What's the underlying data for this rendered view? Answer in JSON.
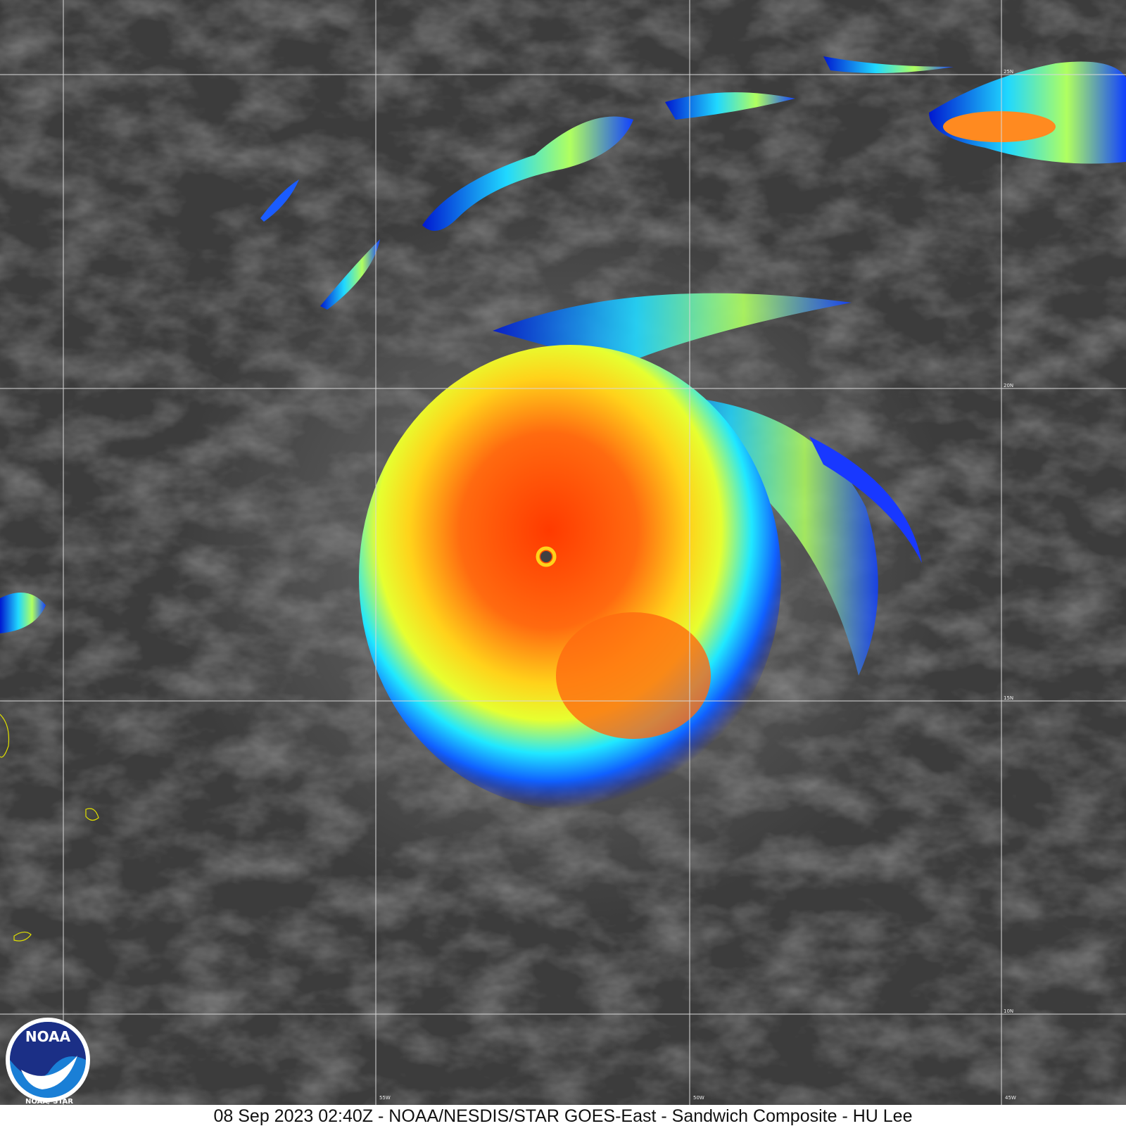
{
  "map": {
    "lat_labels": [
      "25N",
      "20N",
      "15N",
      "10N"
    ],
    "lon_labels": [
      "55W",
      "50W",
      "45W"
    ]
  },
  "caption": "08 Sep 2023 02:40Z - NOAA/NESDIS/STAR GOES-East - Sandwich Composite - HU Lee",
  "logo": {
    "text": "NOAA",
    "subtext": "NOAA/ STAR"
  }
}
